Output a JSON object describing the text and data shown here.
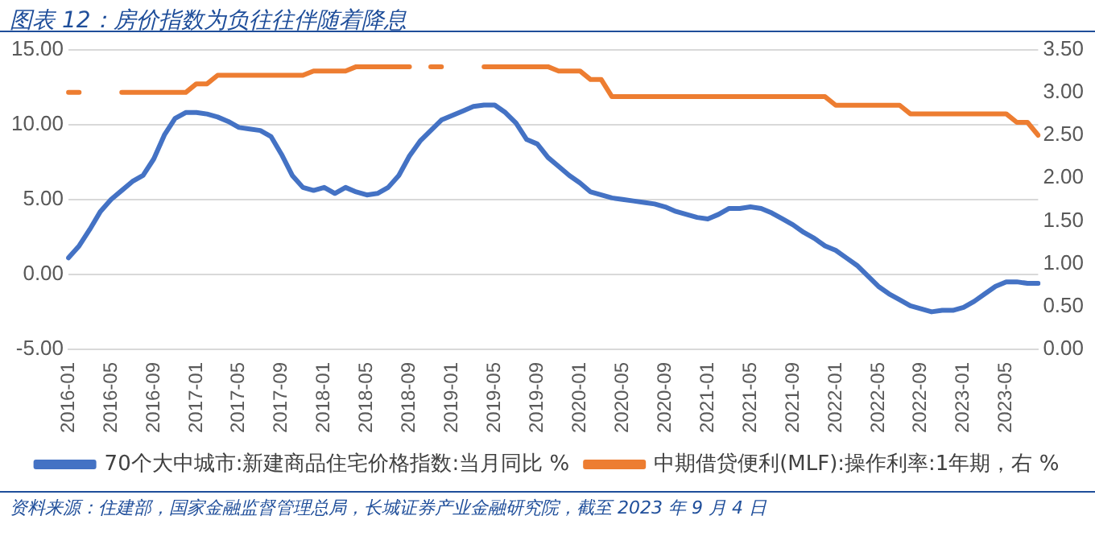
{
  "chart_data": {
    "type": "line",
    "title": "图表 12：房价指数为负往往伴随着降息",
    "categories": [
      "2016-01",
      null,
      null,
      null,
      "2016-05",
      null,
      null,
      null,
      "2016-09",
      null,
      null,
      null,
      "2017-01",
      null,
      null,
      null,
      "2017-05",
      null,
      null,
      null,
      "2017-09",
      null,
      null,
      null,
      "2018-01",
      null,
      null,
      null,
      "2018-05",
      null,
      null,
      null,
      "2018-09",
      null,
      null,
      null,
      "2019-01",
      null,
      null,
      null,
      "2019-05",
      null,
      null,
      null,
      "2019-09",
      null,
      null,
      null,
      "2020-01",
      null,
      null,
      null,
      "2020-05",
      null,
      null,
      null,
      "2020-09",
      null,
      null,
      null,
      "2021-01",
      null,
      null,
      null,
      "2021-05",
      null,
      null,
      null,
      "2021-09",
      null,
      null,
      null,
      "2022-01",
      null,
      null,
      null,
      "2022-05",
      null,
      null,
      null,
      "2022-09",
      null,
      null,
      null,
      "2023-01",
      null,
      null,
      null,
      "2023-05",
      null,
      null,
      null
    ],
    "series": [
      {
        "name": "70个大中城市:新建商品住宅价格指数:当月同比 %",
        "color": "#4472c4",
        "values": [
          1.1,
          1.9,
          3.0,
          4.2,
          5.0,
          5.6,
          6.2,
          6.6,
          7.7,
          9.3,
          10.4,
          10.8,
          10.8,
          10.7,
          10.5,
          10.2,
          9.8,
          9.7,
          9.6,
          9.2,
          8.0,
          6.6,
          5.8,
          5.6,
          5.8,
          5.4,
          5.8,
          5.5,
          5.3,
          5.4,
          5.8,
          6.6,
          7.9,
          8.9,
          9.6,
          10.3,
          10.6,
          10.9,
          11.2,
          11.3,
          11.3,
          10.8,
          10.1,
          9.0,
          8.7,
          7.8,
          7.2,
          6.6,
          6.1,
          5.5,
          5.3,
          5.1,
          5.0,
          4.9,
          4.8,
          4.7,
          4.5,
          4.2,
          4.0,
          3.8,
          3.7,
          4.0,
          4.4,
          4.4,
          4.5,
          4.4,
          4.1,
          3.7,
          3.3,
          2.8,
          2.4,
          1.9,
          1.6,
          1.1,
          0.6,
          -0.1,
          -0.8,
          -1.3,
          -1.7,
          -2.1,
          -2.3,
          -2.5,
          -2.4,
          -2.4,
          -2.2,
          -1.8,
          -1.3,
          -0.8,
          -0.5,
          -0.5,
          -0.6,
          -0.6
        ]
      },
      {
        "name": "中期借贷便利(MLF):操作利率:1年期，右 %",
        "color": "#ed7d31",
        "axis": "y2",
        "values": [
          3.0,
          3.0,
          null,
          null,
          null,
          3.0,
          3.0,
          3.0,
          3.0,
          3.0,
          3.0,
          3.0,
          3.1,
          3.1,
          3.2,
          3.2,
          3.2,
          3.2,
          3.2,
          3.2,
          3.2,
          3.2,
          3.2,
          3.25,
          3.25,
          3.25,
          3.25,
          3.3,
          3.3,
          3.3,
          3.3,
          3.3,
          3.3,
          null,
          3.3,
          3.3,
          null,
          null,
          null,
          3.3,
          3.3,
          3.3,
          3.3,
          3.3,
          3.3,
          3.3,
          3.25,
          3.25,
          3.25,
          3.15,
          3.15,
          2.95,
          2.95,
          2.95,
          2.95,
          2.95,
          2.95,
          2.95,
          2.95,
          2.95,
          2.95,
          2.95,
          2.95,
          2.95,
          2.95,
          2.95,
          2.95,
          2.95,
          2.95,
          2.95,
          2.95,
          2.95,
          2.85,
          2.85,
          2.85,
          2.85,
          2.85,
          2.85,
          2.85,
          2.75,
          2.75,
          2.75,
          2.75,
          2.75,
          2.75,
          2.75,
          2.75,
          2.75,
          2.75,
          2.65,
          2.65,
          2.5
        ]
      }
    ],
    "ylim": [
      -5,
      15
    ],
    "yticks": [
      {
        "value": -5,
        "label": "-5.00"
      },
      {
        "value": 0,
        "label": "0.00"
      },
      {
        "value": 5,
        "label": "5.00"
      },
      {
        "value": 10,
        "label": "10.00"
      },
      {
        "value": 15,
        "label": "15.00"
      }
    ],
    "y2lim": [
      0,
      3.5
    ],
    "y2ticks": [
      {
        "value": 0,
        "label": "0.00"
      },
      {
        "value": 0.5,
        "label": "0.50"
      },
      {
        "value": 1,
        "label": "1.00"
      },
      {
        "value": 1.5,
        "label": "1.50"
      },
      {
        "value": 2,
        "label": "2.00"
      },
      {
        "value": 2.5,
        "label": "2.50"
      },
      {
        "value": 3,
        "label": "3.00"
      },
      {
        "value": 3.5,
        "label": "3.50"
      }
    ],
    "grid": "y",
    "legend": "bottom",
    "marker": "none",
    "line_style": "solid",
    "annotations": [
      "资料来源：住建部，国家金融监督管理总局，长城证券产业金融研究院，截至 2023 年 9 月 4 日"
    ]
  }
}
